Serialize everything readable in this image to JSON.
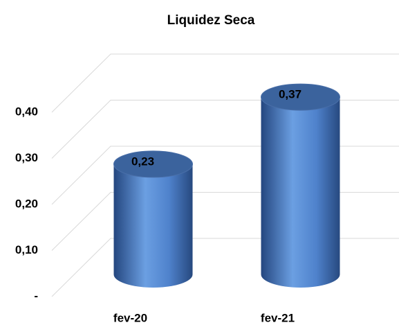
{
  "chart_data": {
    "type": "cylinder",
    "title": "Liquidez Seca",
    "categories": [
      "fev-20",
      "fev-21"
    ],
    "values": [
      0.23,
      0.37
    ],
    "value_labels": [
      "0,23",
      "0,37"
    ],
    "color": "#4a7cc4",
    "ylim": [
      0,
      0.4
    ],
    "yticks": [
      {
        "value": 0,
        "label": "-"
      },
      {
        "value": 0.1,
        "label": "0,10"
      },
      {
        "value": 0.2,
        "label": "0,20"
      },
      {
        "value": 0.3,
        "label": "0,30"
      },
      {
        "value": 0.4,
        "label": "0,40"
      }
    ],
    "grid": true
  }
}
